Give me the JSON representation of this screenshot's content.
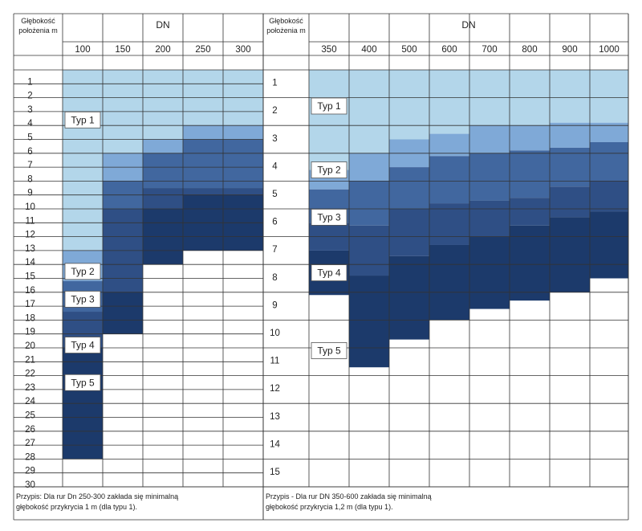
{
  "chart_data": {
    "type": "heatmap",
    "panels": [
      {
        "header_depth": "Głębokość położenia m",
        "header_dn": "DN",
        "columns": [
          "100",
          "150",
          "200",
          "250",
          "300"
        ],
        "depth_ticks": [
          "1",
          "2",
          "3",
          "4",
          "5",
          "6",
          "7",
          "8",
          "9",
          "10",
          "11",
          "12",
          "13",
          "14",
          "15",
          "16",
          "17",
          "18",
          "19",
          "20",
          "21",
          "22",
          "23",
          "24",
          "25",
          "26",
          "27",
          "28",
          "29",
          "30"
        ],
        "depth_range": [
          0,
          30
        ],
        "typ_boundaries_m": [
          [
            13.0,
            15.2,
            17.4,
            20.0,
            28.0
          ],
          [
            6.0,
            8.0,
            10.0,
            16.0,
            19.0
          ],
          [
            5.0,
            6.0,
            8.5,
            10.0,
            14.0
          ],
          [
            4.0,
            5.0,
            8.5,
            9.0,
            13.0
          ],
          [
            4.0,
            5.0,
            8.5,
            9.0,
            13.0
          ]
        ],
        "typ_labels": [
          {
            "text": "Typ 1",
            "col": 0,
            "depth": 3.6
          },
          {
            "text": "Typ 2",
            "col": 0,
            "depth": 14.5
          },
          {
            "text": "Typ 3",
            "col": 0,
            "depth": 16.5
          },
          {
            "text": "Typ 4",
            "col": 0,
            "depth": 19.8
          },
          {
            "text": "Typ 5",
            "col": 0,
            "depth": 22.5
          }
        ],
        "note": [
          "Przypis:  Dla rur  Dn 250-300 zakłada się minimalną",
          "głębokość przykrycia 1 m (dla typu 1)."
        ]
      },
      {
        "header_depth": "Głębokość położenia m",
        "header_dn": "DN",
        "columns": [
          "350",
          "400",
          "500",
          "600",
          "700",
          "800",
          "900",
          "1000"
        ],
        "depth_ticks": [
          "1",
          "2",
          "3",
          "4",
          "5",
          "6",
          "7",
          "8",
          "9",
          "10",
          "11",
          "12",
          "13",
          "14",
          "15"
        ],
        "depth_range": [
          0,
          15
        ],
        "typ_boundaries_m": [
          [
            3.6,
            4.3,
            5.5,
            6.5,
            8.1
          ],
          [
            3.0,
            4.0,
            5.6,
            7.4,
            10.7
          ],
          [
            2.5,
            3.5,
            5.0,
            6.7,
            9.7
          ],
          [
            2.3,
            3.1,
            4.8,
            6.3,
            9.0
          ],
          [
            2.0,
            3.0,
            4.7,
            6.0,
            8.6
          ],
          [
            2.0,
            2.9,
            4.6,
            5.6,
            8.3
          ],
          [
            1.9,
            2.8,
            4.2,
            5.3,
            8.0
          ],
          [
            1.9,
            2.6,
            4.0,
            5.1,
            7.5
          ]
        ],
        "typ_labels": [
          {
            "text": "Typ 1",
            "col": 0,
            "depth": 1.3
          },
          {
            "text": "Typ 2",
            "col": 0,
            "depth": 3.6
          },
          {
            "text": "Typ 3",
            "col": 0,
            "depth": 5.3
          },
          {
            "text": "Typ 4",
            "col": 0,
            "depth": 7.3
          },
          {
            "text": "Typ 5",
            "col": 0,
            "depth": 10.1
          }
        ],
        "note": [
          "Przypis - Dla rur DN 350-600 zakłada się minimalną",
          "głębokość przykrycia 1,2 m (dla typu 1)."
        ]
      }
    ],
    "legend": [
      "Typ 1",
      "Typ 2",
      "Typ 3",
      "Typ 4",
      "Typ 5"
    ],
    "colors": [
      "#b3d6ea",
      "#7fa9d7",
      "#41679f",
      "#2f4f85",
      "#1c3a6b"
    ]
  }
}
